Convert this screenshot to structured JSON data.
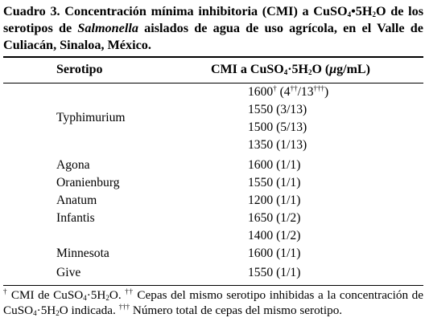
{
  "caption": {
    "label": "Cuadro 3.",
    "text_1": " Concentración mínima inhibitoria (CMI) a CuSO",
    "sub_1": "4",
    "text_2": "•5H",
    "sub_2": "2",
    "text_3": "O de los serotipos de ",
    "genus": "Salmonella",
    "text_4": " aislados de agua de uso agrícola, en el Valle de Culiacán, Sinaloa, México."
  },
  "header": {
    "serotype": "Serotipo",
    "cmi_1": "CMI a CuSO",
    "cmi_sub1": "4",
    "cmi_2": "·5H",
    "cmi_sub2": "2",
    "cmi_3": "O (",
    "cmi_unit_mu": "μ",
    "cmi_4": "g/mL)"
  },
  "serotypes": {
    "typhimurium": "Typhimurium",
    "agona": "Agona",
    "oranienburg": "Oranienburg",
    "anatum": "Anatum",
    "infantis": "Infantis",
    "minnesota": "Minnesota",
    "give": "Give"
  },
  "values": {
    "t1_main": "1600",
    "t1_sup1": "†",
    "t1_open": " (4",
    "t1_sup2": "††",
    "t1_mid": "/13",
    "t1_sup3": "†††",
    "t1_close": ")",
    "t2": "1550 (3/13)",
    "t3": "1500 (5/13)",
    "t4": "1350 (1/13)",
    "agona": "1600 (1/1)",
    "oranienburg": "1550 (1/1)",
    "anatum": "1200 (1/1)",
    "infantis_1": "1650 (1/2)",
    "infantis_2": "1400 (1/2)",
    "minnesota": "1600 (1/1)",
    "give": "1550 (1/1)"
  },
  "footnote": {
    "m1": "†",
    "f1a": " CMI de CuSO",
    "f1s1": "4",
    "f1b": "·5H",
    "f1s2": "2",
    "f1c": "O. ",
    "m2": "††",
    "f2a": " Cepas del mismo serotipo inhibidas a la concentración de CuSO",
    "f2s1": "4",
    "f2b": "·5H",
    "f2s2": "2",
    "f2c": "O indicada. ",
    "m3": "†††",
    "f3": " Número total de cepas del mismo serotipo."
  }
}
